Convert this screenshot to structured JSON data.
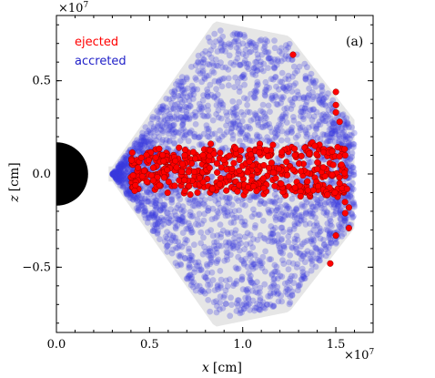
{
  "chart_data": {
    "type": "scatter",
    "xlabel_var": "x",
    "xlabel_unit": "[cm]",
    "ylabel_var": "z",
    "ylabel_unit": "[cm]",
    "x_multiplier": "×10",
    "x_exponent": "7",
    "y_multiplier": "×10",
    "y_exponent": "7",
    "xlim": [
      0.0,
      1.7
    ],
    "ylim": [
      -0.85,
      0.85
    ],
    "xticks": [
      0.0,
      0.5,
      1.0,
      1.5
    ],
    "xtick_labels": [
      "0.0",
      "0.5",
      "1.0",
      "1.5"
    ],
    "yticks": [
      -0.5,
      0.0,
      0.5
    ],
    "ytick_labels": [
      "−0.5",
      "0.0",
      "0.5"
    ],
    "panel_label": "(a)",
    "grid": false,
    "legend_placement": "top-left",
    "central_object": {
      "shape": "half-disk",
      "x": 0.0,
      "z": 0.0,
      "radius": 0.17,
      "color": "#000000"
    },
    "series": [
      {
        "name": "ejected",
        "color": "#ff0000",
        "edge_color": "#8b0000",
        "points": [
          [
            1.27,
            0.64
          ],
          [
            1.5,
            0.44
          ],
          [
            1.5,
            0.37
          ],
          [
            1.5,
            0.33
          ],
          [
            1.52,
            0.28
          ],
          [
            1.48,
            0.12
          ],
          [
            1.53,
            0.05
          ],
          [
            1.57,
            -0.18
          ],
          [
            1.55,
            -0.21
          ],
          [
            1.57,
            -0.29
          ],
          [
            1.5,
            -0.33
          ],
          [
            1.47,
            -0.48
          ],
          [
            1.55,
            0.1
          ],
          [
            1.52,
            -0.05
          ],
          [
            1.56,
            -0.08
          ]
        ]
      },
      {
        "name": "accreted",
        "color": "#3a3ae0",
        "points": []
      }
    ],
    "ejected_band": {
      "x_range": [
        0.4,
        1.56
      ],
      "z_center": 0.02,
      "z_halfwidth": 0.12
    }
  },
  "legend": {
    "ejected": "ejected",
    "accreted": "accreted"
  }
}
